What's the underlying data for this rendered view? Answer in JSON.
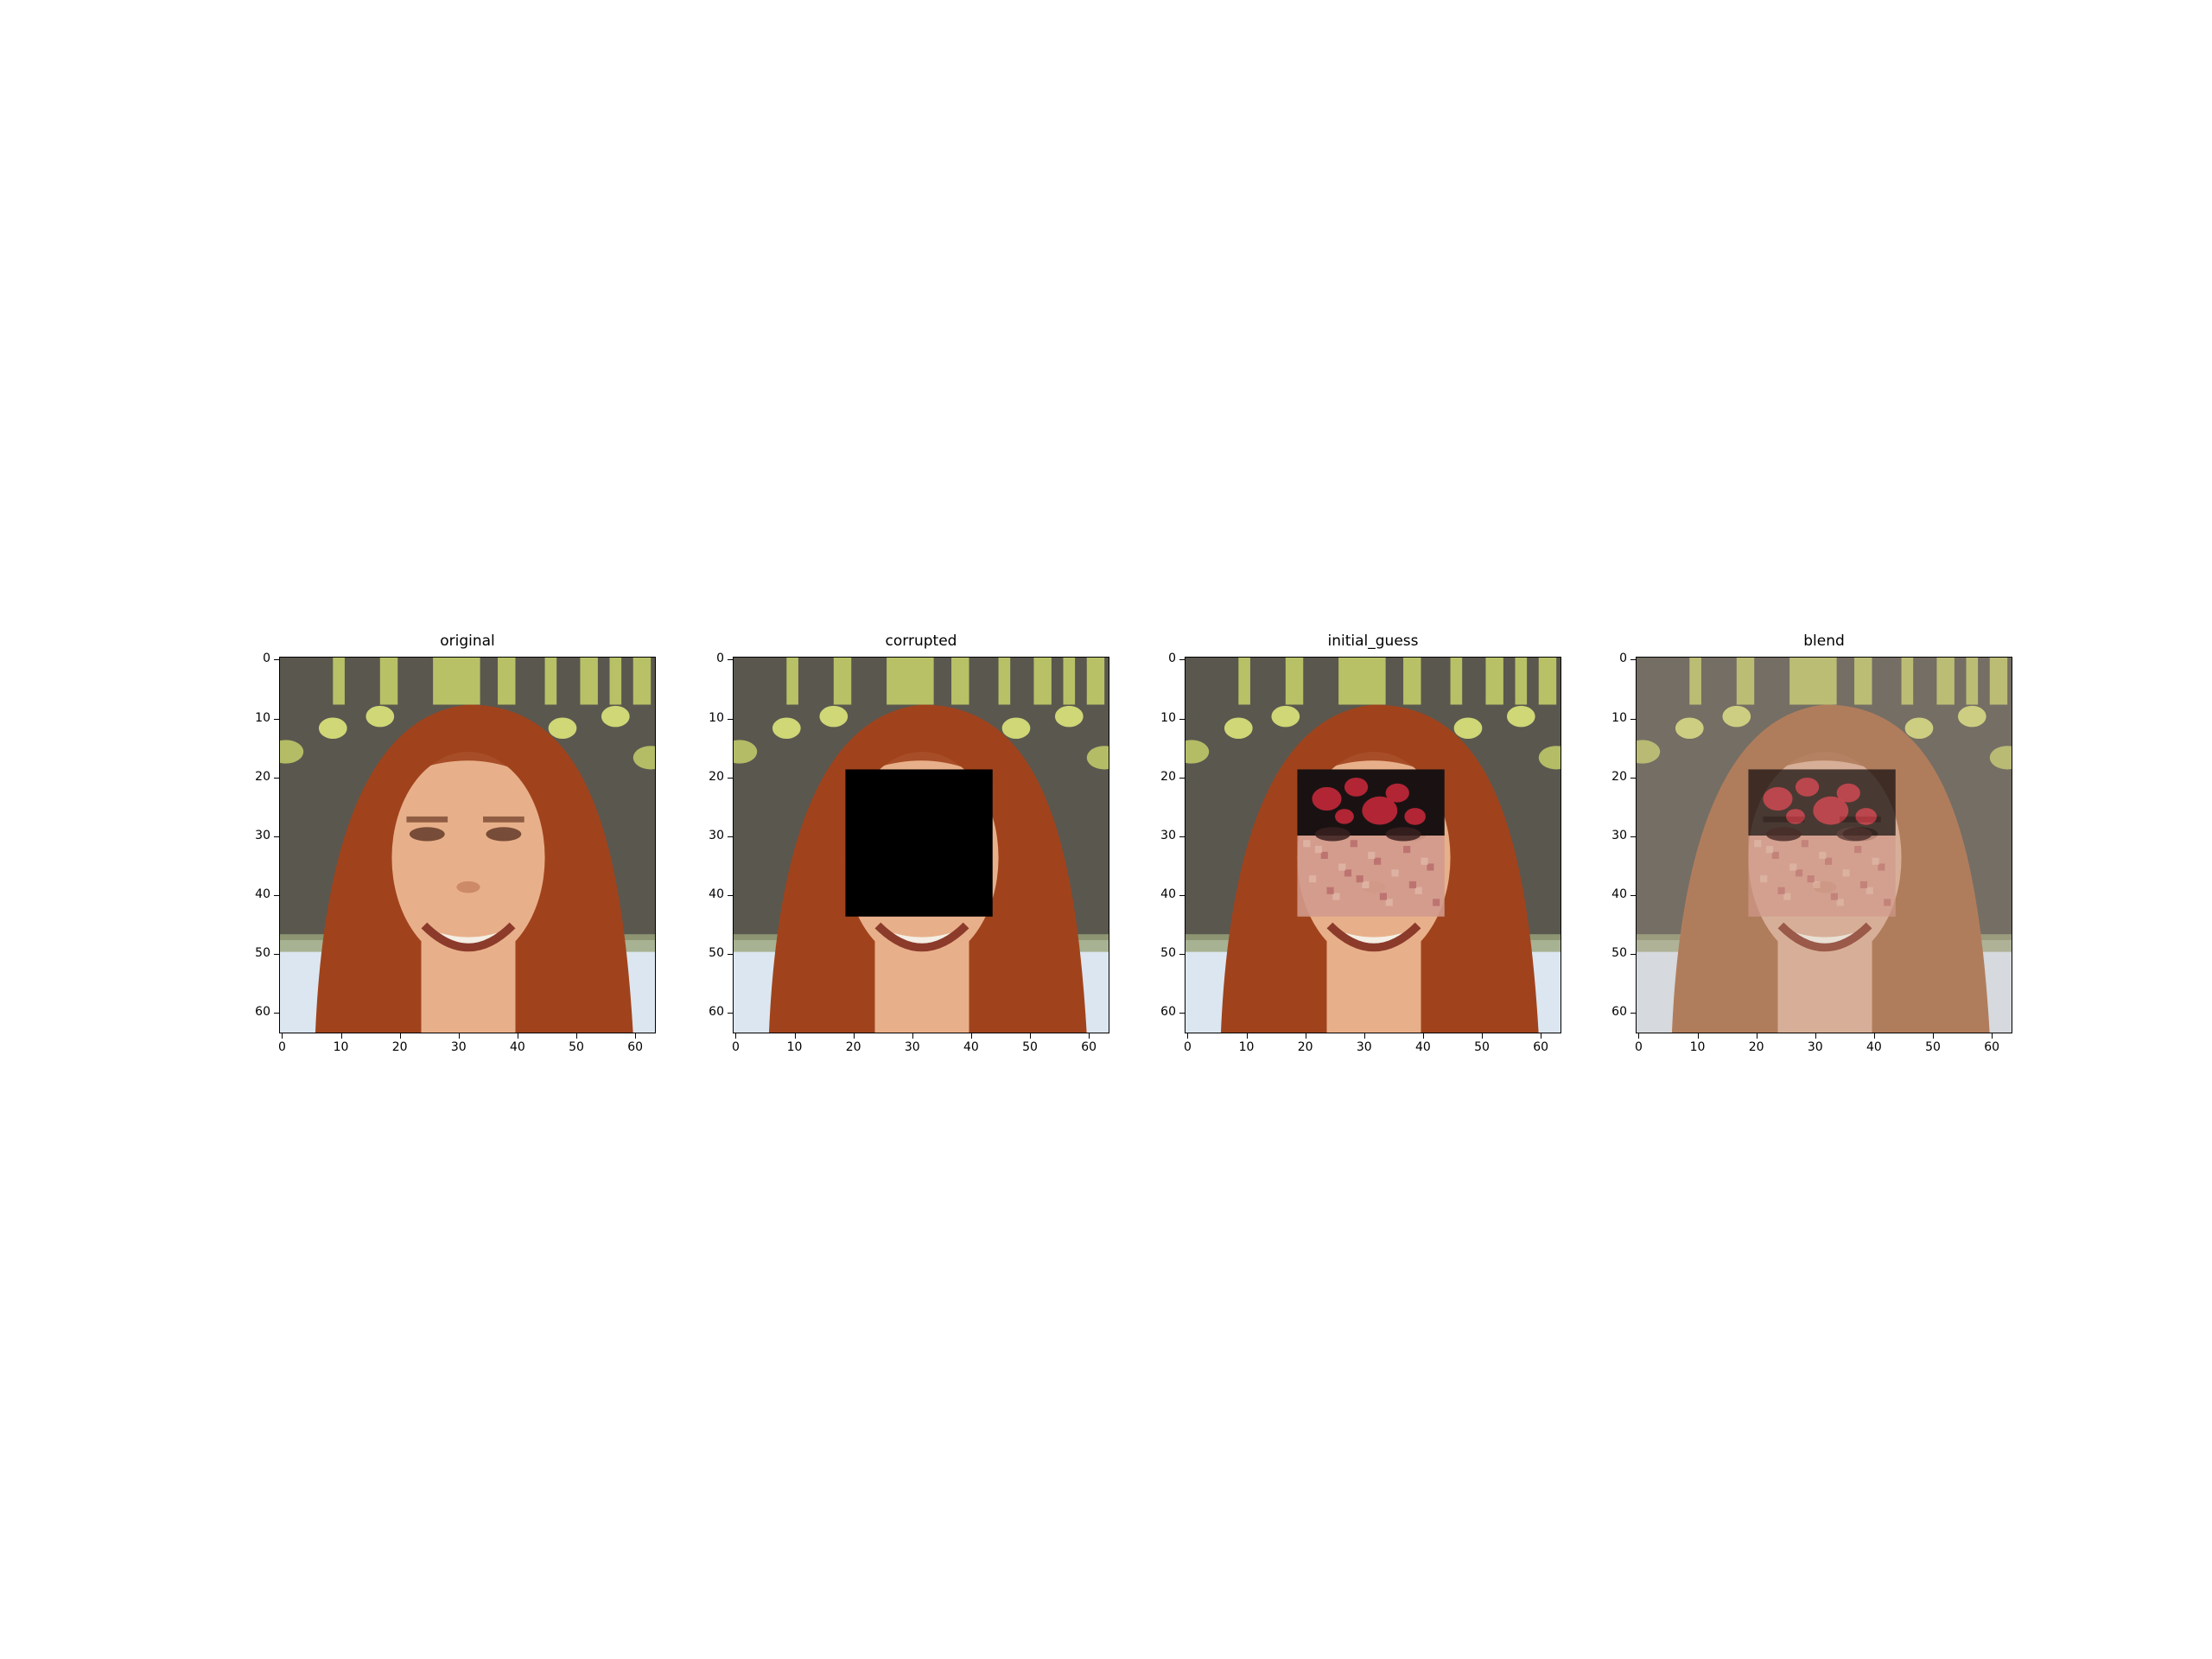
{
  "figure": {
    "panels": [
      {
        "id": "original",
        "title": "original",
        "variant": "original"
      },
      {
        "id": "corrupted",
        "title": "corrupted",
        "variant": "corrupted"
      },
      {
        "id": "initial_guess",
        "title": "initial_guess",
        "variant": "guess"
      },
      {
        "id": "blend",
        "title": "blend",
        "variant": "blend"
      }
    ],
    "x_ticks": [
      "0",
      "10",
      "20",
      "30",
      "40",
      "50",
      "60"
    ],
    "y_ticks": [
      "0",
      "10",
      "20",
      "30",
      "40",
      "50",
      "60"
    ],
    "image_size": 64,
    "mask": {
      "x0": 19,
      "y0": 19,
      "x1": 44,
      "y1": 44
    },
    "colors": {
      "background_wall": "#5a574f",
      "green_stripes": "#c9d36a",
      "hair": "#a0431c",
      "skin": "#e8b08a",
      "floor": "#dbe6f0",
      "mask": "#000000",
      "artifact_red": "#c2283a"
    }
  }
}
